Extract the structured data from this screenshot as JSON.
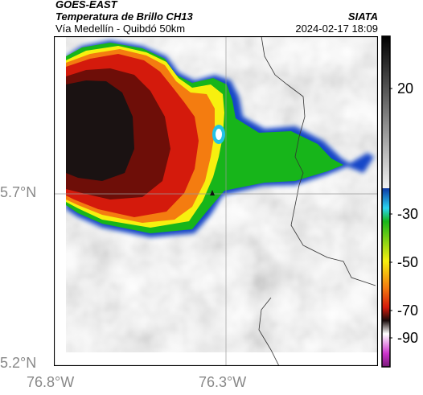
{
  "header": {
    "satellite": "GOES-EAST",
    "product": "Temperatura de Brillo CH13",
    "region": "Vía Medellín - Quibdó 50km",
    "org": "SIATA",
    "datetime": "2024-02-17 18:09"
  },
  "map": {
    "lat_labels": [
      "5.7°N",
      "5.2°N"
    ],
    "lon_labels": [
      "76.8°W",
      "76.3°W"
    ]
  },
  "colorbar": {
    "ticks": [
      "20",
      "-30",
      "-50",
      "-70",
      "-90"
    ],
    "range": [
      -95,
      30
    ]
  },
  "colors": {
    "cold_core": "#1a1212",
    "red": "#d41a0c",
    "orange": "#f47c10",
    "yellow": "#f7f00f",
    "green": "#17b51a",
    "blue": "#1446c8",
    "cyan": "#22c2e6"
  }
}
